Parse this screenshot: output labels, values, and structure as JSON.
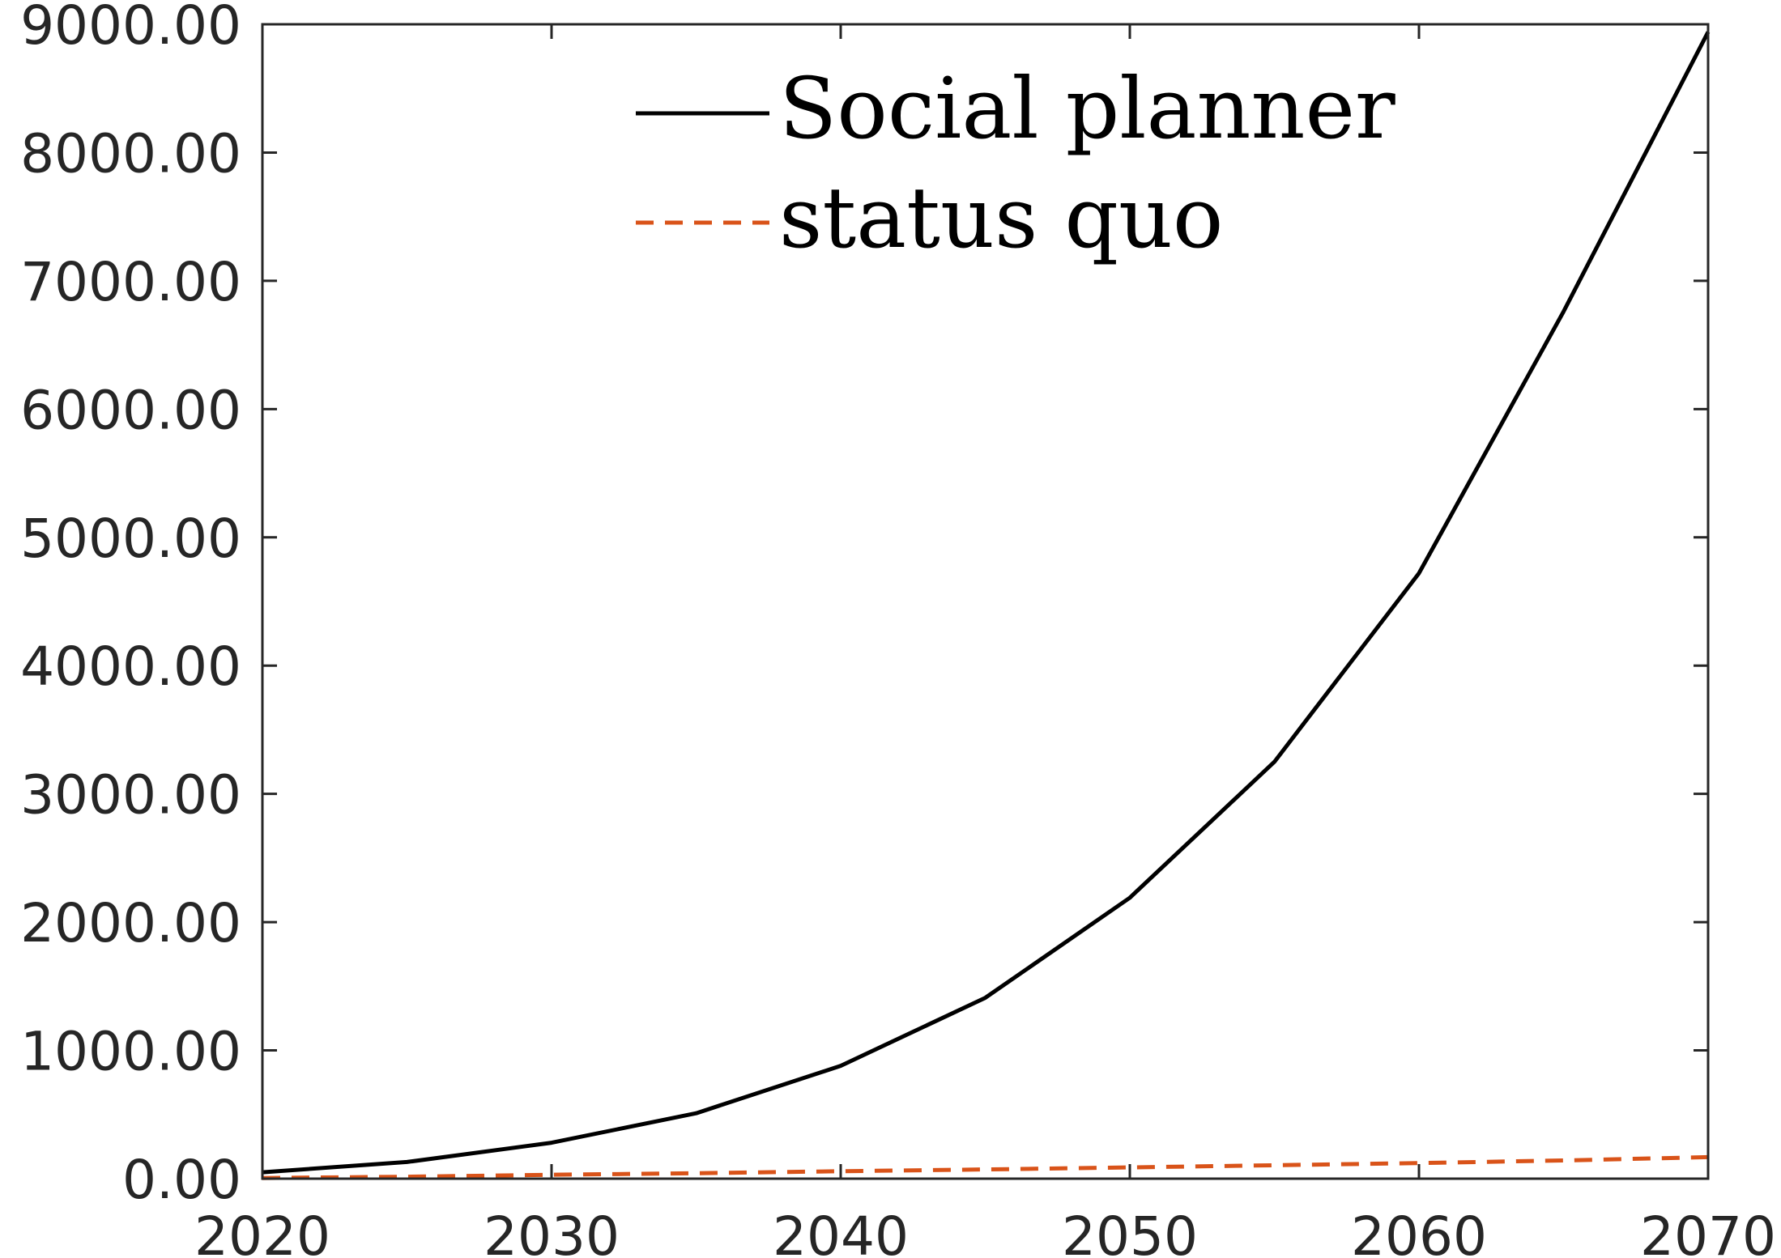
{
  "chart_data": {
    "type": "line",
    "title": "",
    "xlabel": "",
    "ylabel": "",
    "xlim": [
      2020,
      2070
    ],
    "ylim": [
      0,
      9000
    ],
    "x": [
      2020,
      2025,
      2030,
      2035,
      2040,
      2045,
      2050,
      2055,
      2060,
      2065,
      2070
    ],
    "xticks": [
      "2020",
      "2030",
      "2040",
      "2050",
      "2060",
      "2070"
    ],
    "xtick_values": [
      2020,
      2030,
      2040,
      2050,
      2060,
      2070
    ],
    "yticks": [
      "0.00",
      "1000.00",
      "2000.00",
      "3000.00",
      "4000.00",
      "5000.00",
      "6000.00",
      "7000.00",
      "8000.00",
      "9000.00"
    ],
    "ytick_values": [
      0,
      1000,
      2000,
      3000,
      4000,
      5000,
      6000,
      7000,
      8000,
      9000
    ],
    "grid": false,
    "legend_position": "top-center",
    "series": [
      {
        "name": "Social planner",
        "color": "#000000",
        "style": "solid",
        "values": [
          50,
          130,
          280,
          510,
          880,
          1410,
          2190,
          3250,
          4720,
          6760,
          8940
        ]
      },
      {
        "name": "status quo",
        "color": "#D95319",
        "style": "dashed",
        "values": [
          5,
          15,
          30,
          42,
          58,
          72,
          88,
          105,
          122,
          142,
          168
        ]
      }
    ]
  }
}
